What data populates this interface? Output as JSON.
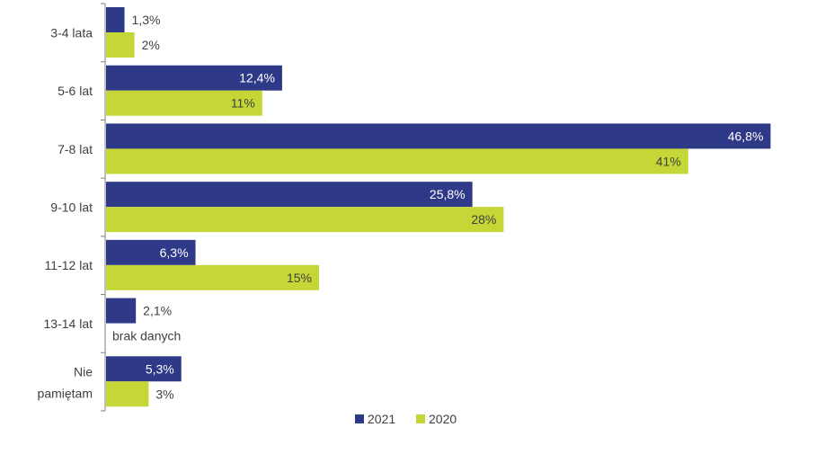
{
  "chart_data": {
    "type": "bar",
    "orientation": "horizontal",
    "categories": [
      [
        "3-4 lata"
      ],
      [
        "5-6 lat"
      ],
      [
        "7-8 lat"
      ],
      [
        "9-10 lat"
      ],
      [
        "11-12 lat"
      ],
      [
        "13-14 lat"
      ],
      [
        "Nie",
        "pamiętam"
      ]
    ],
    "series": [
      {
        "name": "2021",
        "color": "#2E3A87",
        "values": [
          1.3,
          12.4,
          46.8,
          25.8,
          6.3,
          2.1,
          5.3
        ],
        "labels": [
          "1,3%",
          "12,4%",
          "46,8%",
          "25,8%",
          "6,3%",
          "2,1%",
          "5,3%"
        ]
      },
      {
        "name": "2020",
        "color": "#C5D637",
        "values": [
          2,
          11,
          41,
          28,
          15,
          null,
          3
        ],
        "labels": [
          "2%",
          "11%",
          "41%",
          "28%",
          "15%",
          "brak danych",
          "3%"
        ]
      }
    ],
    "xlim": [
      0,
      50
    ],
    "grid": false,
    "legend_position": "bottom"
  }
}
